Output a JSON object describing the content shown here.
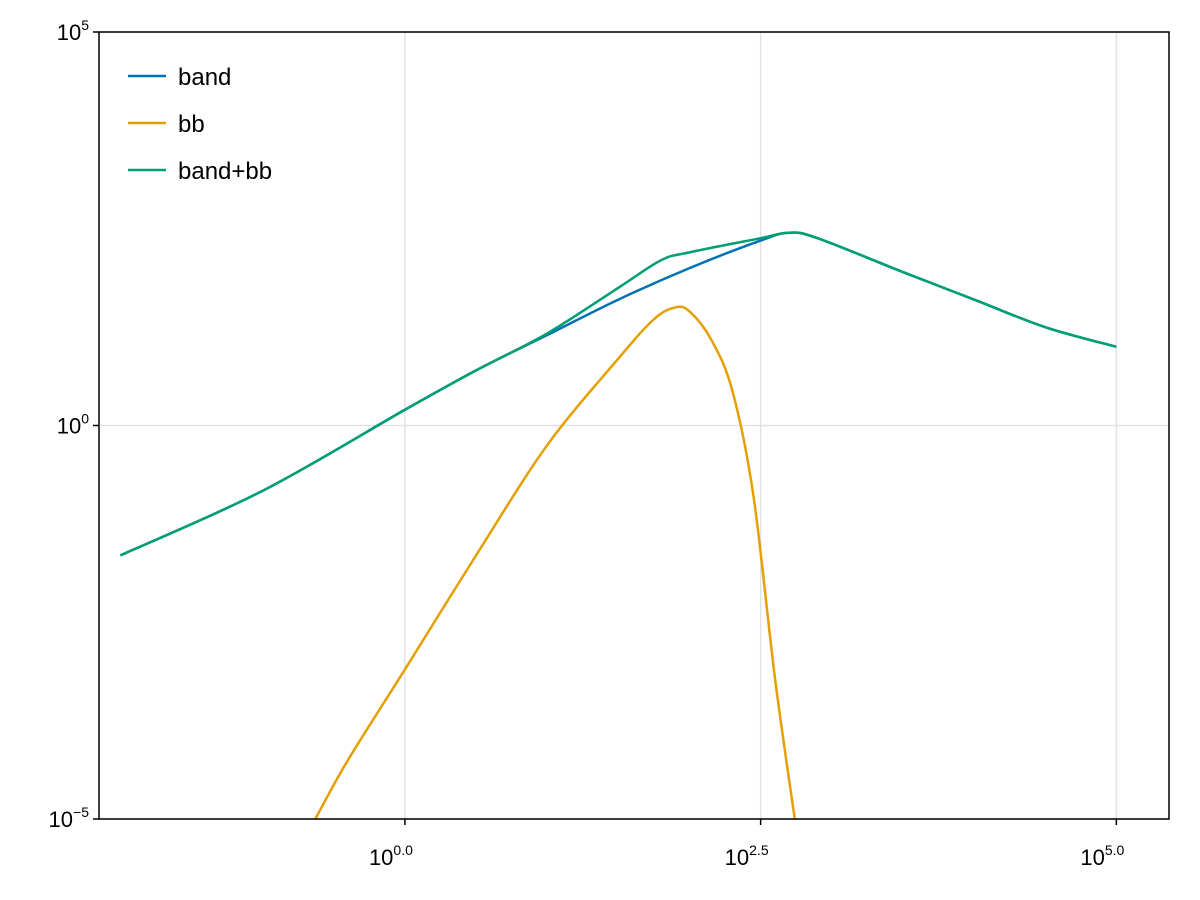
{
  "chart_data": {
    "type": "line",
    "title": "",
    "xlabel": "",
    "ylabel": "",
    "xscale": "log10",
    "yscale": "log10",
    "xlim_log10": [
      -2.15,
      5.37
    ],
    "ylim_log10": [
      -5,
      5
    ],
    "grid": true,
    "legend_position": "top-left",
    "x_ticks": [
      {
        "base": "10",
        "exp": "0.0",
        "log10": 0.0
      },
      {
        "base": "10",
        "exp": "2.5",
        "log10": 2.5
      },
      {
        "base": "10",
        "exp": "5.0",
        "log10": 5.0
      }
    ],
    "y_ticks": [
      {
        "base": "10",
        "exp": "−5",
        "log10": -5
      },
      {
        "base": "10",
        "exp": "0",
        "log10": 0
      },
      {
        "base": "10",
        "exp": "5",
        "log10": 5
      }
    ],
    "series": [
      {
        "name": "band",
        "color": "#0072b2",
        "points_log10": [
          [
            -2.0,
            -1.65
          ],
          [
            -1.0,
            -0.83
          ],
          [
            0.0,
            0.2
          ],
          [
            0.5,
            0.7
          ],
          [
            1.0,
            1.15
          ],
          [
            1.5,
            1.6
          ],
          [
            2.0,
            2.0
          ],
          [
            2.5,
            2.35
          ],
          [
            2.7,
            2.45
          ],
          [
            2.9,
            2.38
          ],
          [
            3.5,
            1.95
          ],
          [
            4.0,
            1.6
          ],
          [
            4.5,
            1.25
          ],
          [
            5.0,
            1.0
          ]
        ]
      },
      {
        "name": "bb",
        "color": "#e69f00",
        "points_log10": [
          [
            -0.63,
            -5.0
          ],
          [
            -0.4,
            -4.25
          ],
          [
            0.0,
            -3.1
          ],
          [
            0.5,
            -1.65
          ],
          [
            1.0,
            -0.25
          ],
          [
            1.5,
            0.85
          ],
          [
            1.75,
            1.35
          ],
          [
            1.9,
            1.5
          ],
          [
            2.0,
            1.45
          ],
          [
            2.15,
            1.1
          ],
          [
            2.3,
            0.45
          ],
          [
            2.45,
            -0.9
          ],
          [
            2.6,
            -3.2
          ],
          [
            2.74,
            -5.0
          ]
        ]
      },
      {
        "name": "band+bb",
        "color": "#009e73",
        "points_log10": [
          [
            -2.0,
            -1.65
          ],
          [
            -1.0,
            -0.83
          ],
          [
            0.0,
            0.2
          ],
          [
            0.5,
            0.7
          ],
          [
            1.0,
            1.17
          ],
          [
            1.5,
            1.75
          ],
          [
            1.8,
            2.1
          ],
          [
            2.0,
            2.2
          ],
          [
            2.5,
            2.38
          ],
          [
            2.7,
            2.45
          ],
          [
            2.9,
            2.38
          ],
          [
            3.5,
            1.95
          ],
          [
            4.0,
            1.6
          ],
          [
            4.5,
            1.25
          ],
          [
            5.0,
            1.0
          ]
        ]
      }
    ]
  }
}
